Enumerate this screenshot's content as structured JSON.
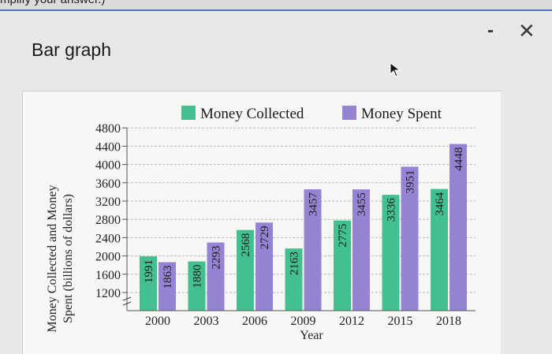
{
  "page": {
    "top_text": "mplify your answer.)",
    "title": "Bar graph",
    "minimize_symbol": "-",
    "close_symbol": "✕"
  },
  "icons": {
    "cursor": "mouse-pointer-icon",
    "minimize": "minimize-icon",
    "close": "close-icon"
  },
  "colors": {
    "collected": "#43c08f",
    "spent": "#9683d3"
  },
  "chart_data": {
    "type": "bar",
    "categories": [
      "2000",
      "2003",
      "2006",
      "2009",
      "2012",
      "2015",
      "2018"
    ],
    "series": [
      {
        "name": "Money Collected",
        "values": [
          1991,
          1880,
          2568,
          2163,
          2775,
          3336,
          3464
        ]
      },
      {
        "name": "Money Spent",
        "values": [
          1863,
          2293,
          2729,
          3457,
          3455,
          3951,
          4448
        ]
      }
    ],
    "xlabel": "Year",
    "ylabel": "Money Collected and Money Spent (billions of dollars)",
    "ylabel_lines": [
      "Money Collected and Money",
      "Spent (billions of dollars)"
    ],
    "yticks": [
      1200,
      1600,
      2000,
      2400,
      2800,
      3200,
      3600,
      4000,
      4400,
      4800
    ],
    "ylim": [
      1000,
      4800
    ],
    "axis_break": true,
    "grid": true,
    "legend_position": "top"
  }
}
